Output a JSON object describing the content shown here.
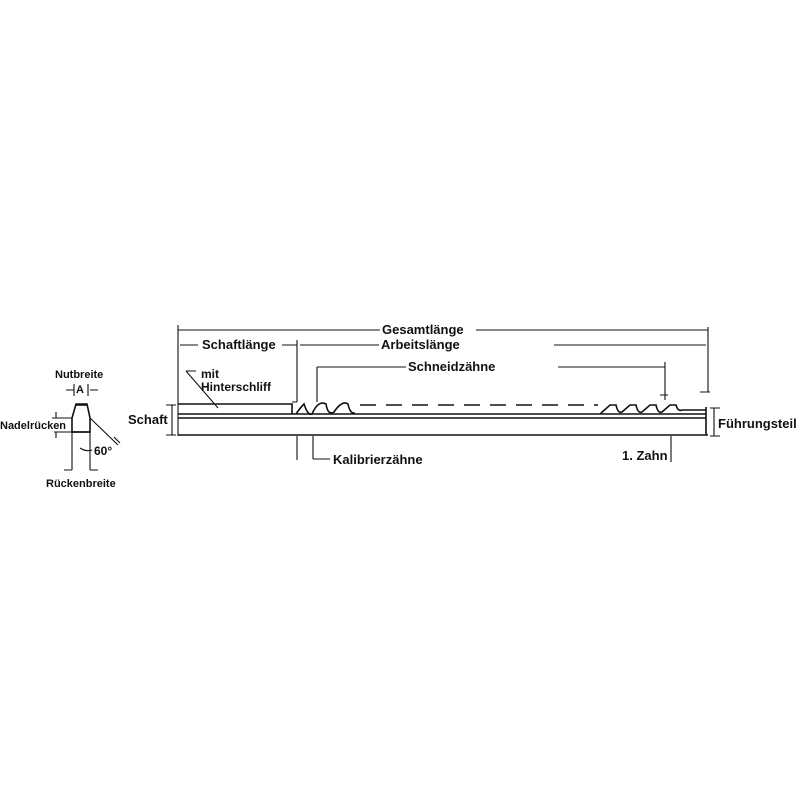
{
  "labels": {
    "nutbreite": "Nutbreite",
    "a": "A",
    "nadelruecken": "Nadelrücken",
    "angle": "60°",
    "rueckenbreite": "Rückenbreite",
    "gesamtlaenge": "Gesamtlänge",
    "schaftlaenge": "Schaftlänge",
    "arbeitslaenge": "Arbeitslänge",
    "schneidzaehne": "Schneidzähne",
    "mit": "mit",
    "hinterschliff": "Hinterschliff",
    "schaft": "Schaft",
    "fuehrungsteil": "Führungsteil",
    "kalibrierzaehne": "Kalibrierzähne",
    "erster_zahn": "1. Zahn"
  }
}
